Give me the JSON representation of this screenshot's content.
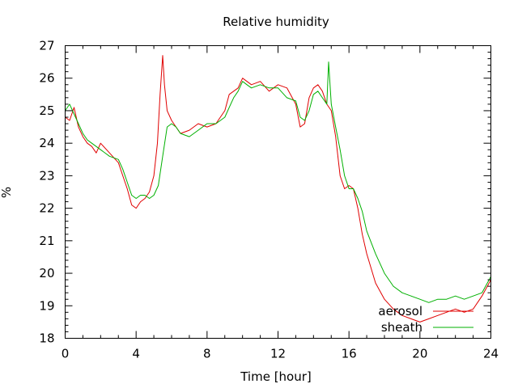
{
  "chart_data": {
    "type": "line",
    "title": "Relative humidity",
    "xlabel": "Time [hour]",
    "ylabel": "%",
    "xlim": [
      0,
      24
    ],
    "ylim": [
      18,
      27
    ],
    "x_ticks": [
      0,
      4,
      8,
      12,
      16,
      20,
      24
    ],
    "y_ticks": [
      18,
      19,
      20,
      21,
      22,
      23,
      24,
      25,
      26,
      27
    ],
    "x_tick_labels": [
      "0",
      "4",
      "8",
      "12",
      "16",
      "20",
      "24"
    ],
    "y_tick_labels": [
      "18",
      "19",
      "20",
      "21",
      "22",
      "23",
      "24",
      "25",
      "26",
      "27"
    ],
    "x_minor_step": 1,
    "y_minor_step": 0.2,
    "grid": false,
    "legend_position": "bottom-right",
    "series": [
      {
        "name": "aerosol",
        "color": "#e00000",
        "x": [
          0,
          0.25,
          0.5,
          0.75,
          1,
          1.25,
          1.5,
          1.75,
          2,
          2.5,
          3,
          3.25,
          3.5,
          3.75,
          4,
          4.25,
          4.5,
          4.75,
          5,
          5.2,
          5.35,
          5.5,
          5.6,
          5.75,
          6,
          6.25,
          6.5,
          7,
          7.5,
          8,
          8.5,
          9,
          9.25,
          9.5,
          9.75,
          10,
          10.25,
          10.5,
          11,
          11.5,
          12,
          12.5,
          13,
          13.25,
          13.5,
          13.75,
          14,
          14.25,
          14.5,
          14.75,
          15,
          15.25,
          15.5,
          15.75,
          16,
          16.25,
          16.5,
          16.75,
          17,
          17.5,
          18,
          18.5,
          19,
          19.5,
          20,
          20.5,
          21,
          21.5,
          22,
          22.5,
          23,
          23.5,
          24
        ],
        "y": [
          24.8,
          24.7,
          25.1,
          24.5,
          24.2,
          24.0,
          23.9,
          23.7,
          24.0,
          23.7,
          23.4,
          23.0,
          22.6,
          22.1,
          22.0,
          22.2,
          22.3,
          22.5,
          23.0,
          24.0,
          25.5,
          26.7,
          25.8,
          25.0,
          24.7,
          24.5,
          24.3,
          24.4,
          24.6,
          24.5,
          24.6,
          25.0,
          25.5,
          25.6,
          25.7,
          26.0,
          25.9,
          25.8,
          25.9,
          25.6,
          25.8,
          25.7,
          25.2,
          24.5,
          24.6,
          25.4,
          25.7,
          25.8,
          25.6,
          25.2,
          25.0,
          24.2,
          23.0,
          22.6,
          22.7,
          22.6,
          22.0,
          21.2,
          20.6,
          19.7,
          19.2,
          18.9,
          18.7,
          18.6,
          18.5,
          18.6,
          18.7,
          18.8,
          18.9,
          18.8,
          18.9,
          19.3,
          19.8
        ]
      },
      {
        "name": "sheath",
        "color": "#00b000",
        "x": [
          0,
          0.25,
          0.5,
          0.75,
          1,
          1.25,
          1.5,
          1.75,
          2,
          2.5,
          3,
          3.25,
          3.5,
          3.75,
          4,
          4.25,
          4.5,
          4.75,
          5,
          5.25,
          5.5,
          5.75,
          6,
          6.25,
          6.5,
          7,
          7.5,
          8,
          8.5,
          9,
          9.25,
          9.5,
          9.75,
          10,
          10.25,
          10.5,
          11,
          11.5,
          12,
          12.5,
          13,
          13.25,
          13.5,
          13.75,
          14,
          14.25,
          14.5,
          14.75,
          14.85,
          15,
          15.25,
          15.5,
          15.75,
          16,
          16.25,
          16.5,
          16.75,
          17,
          17.5,
          18,
          18.5,
          19,
          19.5,
          20,
          20.5,
          21,
          21.5,
          22,
          22.5,
          23,
          23.5,
          24
        ],
        "y": [
          25.0,
          25.2,
          24.9,
          24.6,
          24.3,
          24.1,
          24.0,
          23.9,
          23.8,
          23.6,
          23.5,
          23.2,
          22.8,
          22.4,
          22.3,
          22.4,
          22.4,
          22.3,
          22.4,
          22.7,
          23.6,
          24.5,
          24.6,
          24.5,
          24.3,
          24.2,
          24.4,
          24.6,
          24.6,
          24.8,
          25.1,
          25.4,
          25.6,
          25.9,
          25.8,
          25.7,
          25.8,
          25.7,
          25.7,
          25.4,
          25.3,
          24.8,
          24.7,
          25.0,
          25.5,
          25.6,
          25.4,
          25.2,
          26.5,
          25.2,
          24.5,
          23.8,
          23.0,
          22.6,
          22.6,
          22.3,
          21.9,
          21.3,
          20.6,
          20.0,
          19.6,
          19.4,
          19.3,
          19.2,
          19.1,
          19.2,
          19.2,
          19.3,
          19.2,
          19.3,
          19.4,
          19.9
        ]
      }
    ]
  }
}
